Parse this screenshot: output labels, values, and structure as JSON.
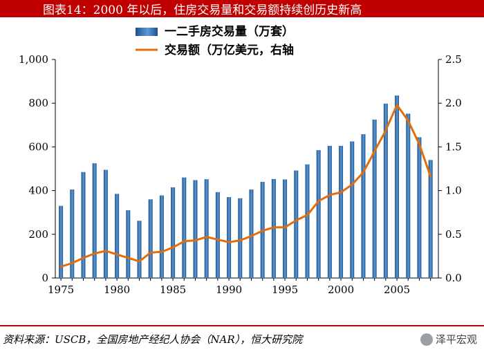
{
  "title": "图表14：2000 年以后，住房交易量和交易额持续创历史新高",
  "source": "资料来源：USCB，全国房地产经纪人协会（NAR），恒大研究院",
  "watermark": "泽平宏观",
  "chart_data": {
    "type": "bar+line",
    "years": [
      1975,
      1976,
      1977,
      1978,
      1979,
      1980,
      1981,
      1982,
      1983,
      1984,
      1985,
      1986,
      1987,
      1988,
      1989,
      1990,
      1991,
      1992,
      1993,
      1994,
      1995,
      1996,
      1997,
      1998,
      1999,
      2000,
      2001,
      2002,
      2003,
      2004,
      2005,
      2006,
      2007,
      2008
    ],
    "series": [
      {
        "name": "一二手房交易量（万套）",
        "type": "bar",
        "axis": "left",
        "color": "#3a78b8",
        "values": [
          330,
          405,
          485,
          525,
          495,
          385,
          310,
          262,
          360,
          378,
          415,
          460,
          448,
          452,
          393,
          370,
          365,
          405,
          440,
          453,
          451,
          492,
          520,
          585,
          605,
          605,
          625,
          658,
          725,
          798,
          835,
          752,
          644,
          540
        ]
      },
      {
        "name": "交易额（万亿美元，右轴",
        "type": "line",
        "axis": "right",
        "color": "#e46c0a",
        "values": [
          0.13,
          0.17,
          0.23,
          0.28,
          0.31,
          0.27,
          0.23,
          0.19,
          0.29,
          0.3,
          0.35,
          0.42,
          0.43,
          0.47,
          0.44,
          0.41,
          0.43,
          0.48,
          0.54,
          0.58,
          0.58,
          0.66,
          0.72,
          0.88,
          0.95,
          0.98,
          1.07,
          1.21,
          1.45,
          1.69,
          1.98,
          1.8,
          1.53,
          1.16
        ]
      }
    ],
    "y_left": {
      "min": 0,
      "max": 1000,
      "ticks": [
        "0",
        "200",
        "400",
        "600",
        "800",
        "1,000"
      ]
    },
    "y_right": {
      "min": 0,
      "max": 2.5,
      "ticks": [
        "0.0",
        "0.5",
        "1.0",
        "1.5",
        "2.0",
        "2.5"
      ]
    },
    "x_ticks": [
      "1975",
      "1980",
      "1985",
      "1990",
      "1995",
      "2000",
      "2005"
    ],
    "legend": [
      "一二手房交易量（万套）",
      "交易额（万亿美元，右轴"
    ],
    "legend_position": "top-center"
  }
}
